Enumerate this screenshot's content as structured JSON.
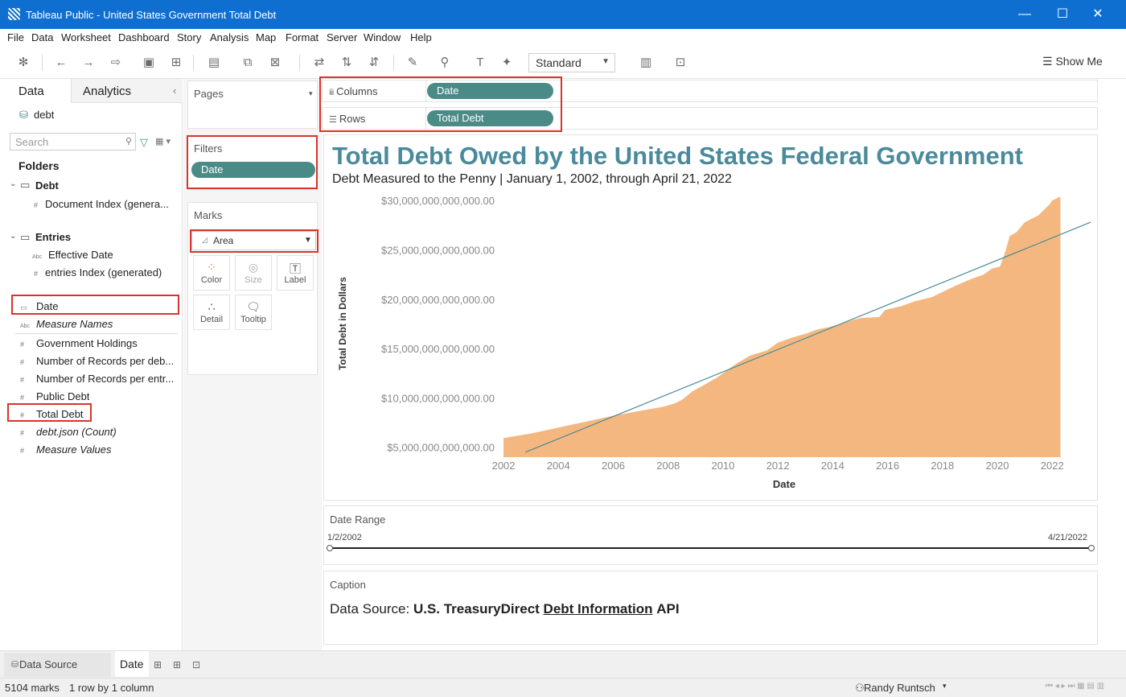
{
  "window": {
    "title": "Tableau Public - United States Government Total Debt"
  },
  "menu": [
    "File",
    "Data",
    "Worksheet",
    "Dashboard",
    "Story",
    "Analysis",
    "Map",
    "Format",
    "Server",
    "Window",
    "Help"
  ],
  "toolbar": {
    "view_mode": "Standard",
    "show_me": "Show Me"
  },
  "datapane": {
    "tabs": [
      "Data",
      "Analytics"
    ],
    "source": "debt",
    "search_placeholder": "Search",
    "folders_label": "Folders",
    "folder_debt": "Debt",
    "debt_fields": [
      "Document Index (genera..."
    ],
    "folder_entries": "Entries",
    "entries_fields": [
      "Effective Date",
      "entries Index (generated)"
    ],
    "dimensions": [
      "Date",
      "Measure Names"
    ],
    "measures": [
      "Government Holdings",
      "Number of Records per deb...",
      "Number of Records per entr...",
      "Public Debt",
      "Total Debt",
      "debt.json (Count)",
      "Measure Values"
    ]
  },
  "cards": {
    "pages": "Pages",
    "filters": "Filters",
    "filter_pill": "Date",
    "marks": "Marks",
    "mark_type": "Area",
    "mark_buttons": [
      "Color",
      "Size",
      "Label",
      "Detail",
      "Tooltip"
    ]
  },
  "shelves": {
    "columns_label": "Columns",
    "columns_pill": "Date",
    "rows_label": "Rows",
    "rows_pill": "Total Debt"
  },
  "chart_data": {
    "type": "area",
    "title": "Total Debt Owed by the United States Federal Government",
    "subtitle": "Debt Measured to the Penny | January 1, 2002, through April 21, 2022",
    "xlabel": "Date",
    "ylabel": "Total Debt in Dollars",
    "x_ticks": [
      "2002",
      "2004",
      "2006",
      "2008",
      "2010",
      "2012",
      "2014",
      "2016",
      "2018",
      "2020",
      "2022"
    ],
    "y_ticks": [
      "$5,000,000,000,000.00",
      "$10,000,000,000,000.00",
      "$15,000,000,000,000.00",
      "$20,000,000,000,000.00",
      "$25,000,000,000,000.00",
      "$30,000,000,000,000.00"
    ],
    "ylim": [
      4000000000000,
      30500000000000
    ],
    "xlim": [
      2001.5,
      2023.4
    ],
    "series": [
      {
        "name": "Total Debt",
        "x": [
          2002.0,
          2003.0,
          2004.0,
          2005.0,
          2006.0,
          2007.0,
          2007.8,
          2008.2,
          2008.5,
          2008.9,
          2009.3,
          2009.8,
          2010.5,
          2011.0,
          2011.6,
          2012.0,
          2012.5,
          2013.0,
          2013.4,
          2013.9,
          2014.5,
          2015.0,
          2015.7,
          2015.9,
          2016.5,
          2017.0,
          2017.6,
          2017.9,
          2018.5,
          2019.0,
          2019.5,
          2019.8,
          2020.1,
          2020.3,
          2020.45,
          2020.7,
          2021.0,
          2021.5,
          2021.9,
          2022.0,
          2022.3
        ],
        "y": [
          5940000000000,
          6400000000000,
          7000000000000,
          7600000000000,
          8200000000000,
          8700000000000,
          9100000000000,
          9400000000000,
          9800000000000,
          10700000000000,
          11300000000000,
          12100000000000,
          13500000000000,
          14300000000000,
          14800000000000,
          15600000000000,
          16100000000000,
          16500000000000,
          16900000000000,
          17200000000000,
          17700000000000,
          18100000000000,
          18200000000000,
          18900000000000,
          19300000000000,
          19800000000000,
          20200000000000,
          20600000000000,
          21400000000000,
          22000000000000,
          22500000000000,
          23100000000000,
          23300000000000,
          24900000000000,
          26400000000000,
          26800000000000,
          27800000000000,
          28500000000000,
          29600000000000,
          30000000000000,
          30400000000000
        ],
        "color": "#f4b77f"
      }
    ],
    "trend_line": {
      "x": [
        2002.8,
        2023.4
      ],
      "y": [
        4500000000000,
        27800000000000
      ],
      "color": "#4a8a9a"
    }
  },
  "date_range": {
    "label": "Date Range",
    "start": "1/2/2002",
    "end": "4/21/2022"
  },
  "caption": {
    "label": "Caption",
    "prefix": "Data Source: ",
    "source_name": "U.S. TreasuryDirect",
    "link_text": "Debt Information",
    "suffix": "API"
  },
  "sheet_tabs": {
    "data_source": "Data Source",
    "active_sheet": "Date"
  },
  "status": {
    "marks": "5104 marks",
    "dims": "1 row by 1 column",
    "user": "Randy Runtsch"
  },
  "colors": {
    "accent": "#4a8a87",
    "title_bar": "#0f6fd1",
    "area": "#f4b77f",
    "highlight": "#d9342b"
  }
}
